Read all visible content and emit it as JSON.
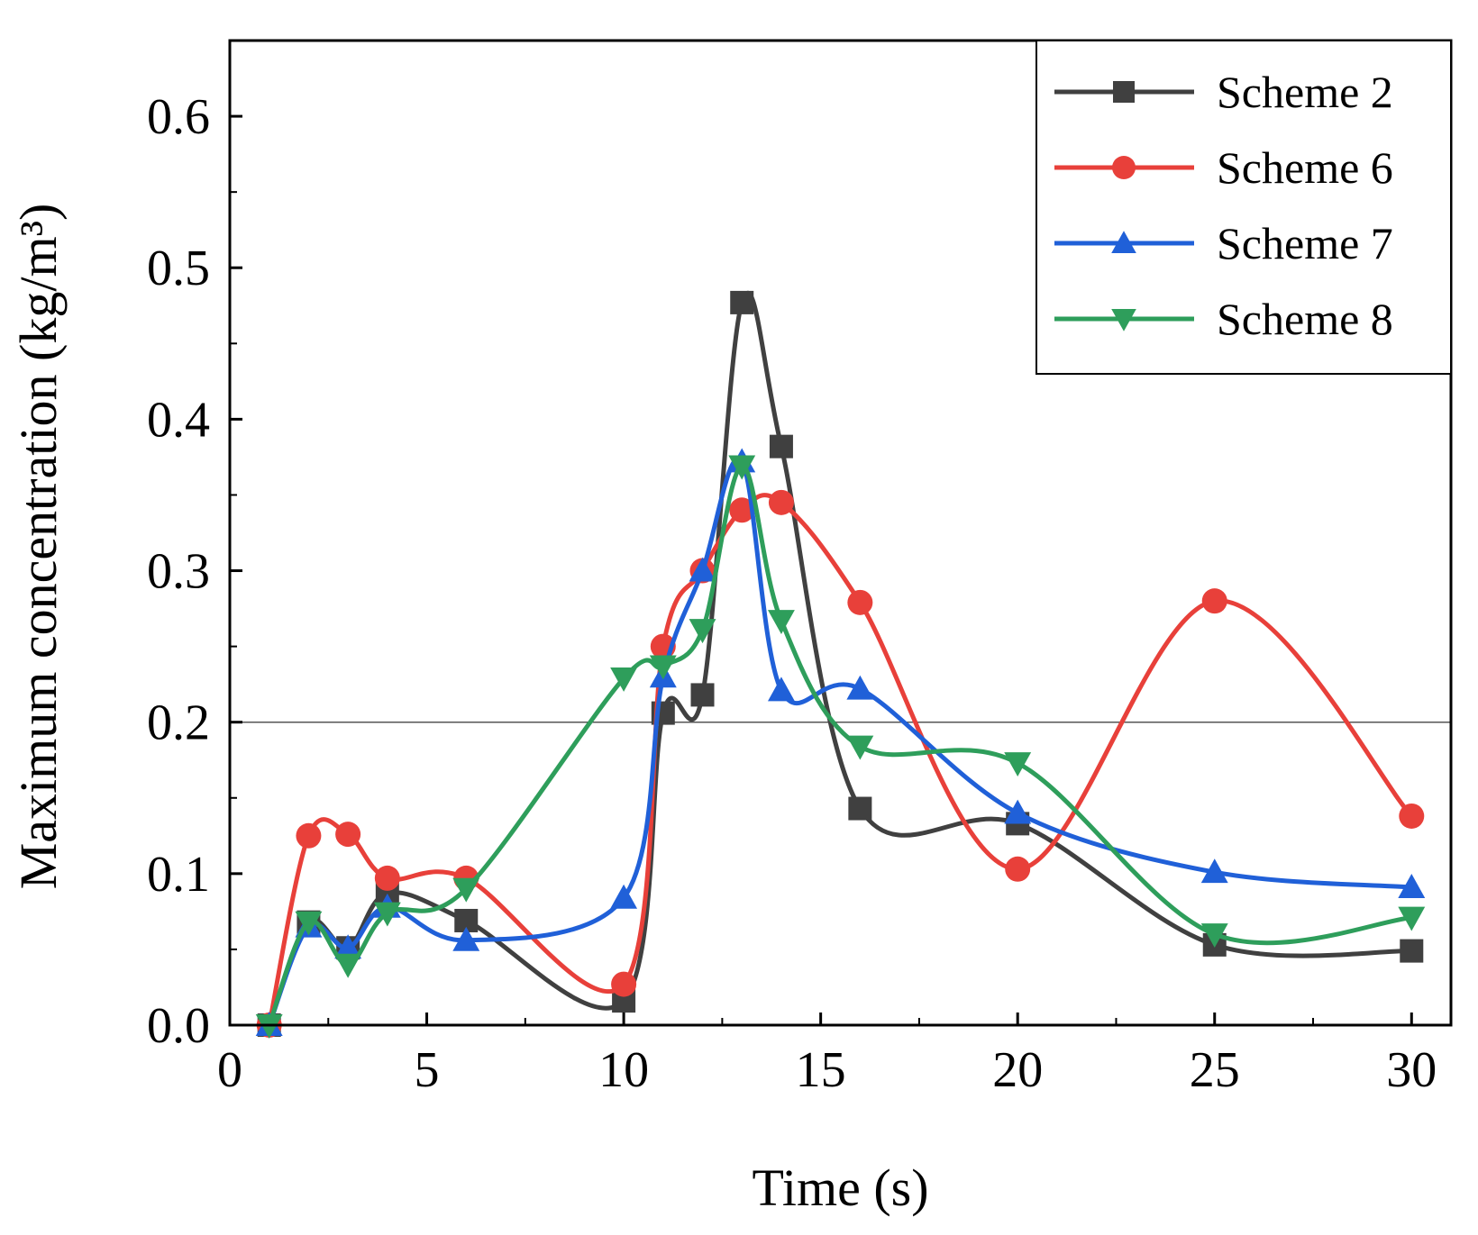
{
  "chart_data": {
    "type": "line",
    "smooth": true,
    "xlabel": "Time (s)",
    "ylabel": "Maximum concentration (kg/m³)",
    "xlim": [
      0,
      31
    ],
    "ylim": [
      0,
      0.65
    ],
    "xticks": [
      0,
      5,
      10,
      15,
      20,
      25,
      30
    ],
    "xtick_labels": [
      "0",
      "5",
      "10",
      "15",
      "20",
      "25",
      "30"
    ],
    "yticks": [
      0.0,
      0.1,
      0.2,
      0.3,
      0.4,
      0.5,
      0.6
    ],
    "ytick_labels": [
      "0.0",
      "0.1",
      "0.2",
      "0.3",
      "0.4",
      "0.5",
      "0.6"
    ],
    "reference_line_y": 0.2,
    "legend_position": "top-right",
    "series": [
      {
        "name": "Scheme 2",
        "color": "#404040",
        "marker": "square",
        "x": [
          1,
          2,
          3,
          4,
          6,
          10,
          11,
          12,
          13,
          14,
          16,
          20,
          25,
          30
        ],
        "y": [
          0.0,
          0.068,
          0.051,
          0.087,
          0.069,
          0.016,
          0.206,
          0.218,
          0.477,
          0.382,
          0.143,
          0.133,
          0.053,
          0.049
        ]
      },
      {
        "name": "Scheme 6",
        "color": "#e8403a",
        "marker": "circle",
        "x": [
          1,
          2,
          3,
          4,
          6,
          10,
          11,
          12,
          13,
          14,
          16,
          20,
          25,
          30
        ],
        "y": [
          0.0,
          0.125,
          0.126,
          0.097,
          0.097,
          0.027,
          0.25,
          0.3,
          0.34,
          0.345,
          0.279,
          0.103,
          0.28,
          0.138
        ]
      },
      {
        "name": "Scheme 7",
        "color": "#2060d8",
        "marker": "triangle-up",
        "x": [
          1,
          2,
          3,
          4,
          6,
          10,
          11,
          12,
          13,
          14,
          16,
          20,
          25,
          30
        ],
        "y": [
          0.0,
          0.065,
          0.051,
          0.078,
          0.056,
          0.084,
          0.23,
          0.3,
          0.372,
          0.221,
          0.222,
          0.14,
          0.101,
          0.091
        ]
      },
      {
        "name": "Scheme 8",
        "color": "#2e9e5b",
        "marker": "triangle-down",
        "x": [
          1,
          2,
          3,
          4,
          6,
          10,
          11,
          12,
          13,
          14,
          16,
          20,
          25,
          30
        ],
        "y": [
          0.0,
          0.068,
          0.04,
          0.074,
          0.09,
          0.229,
          0.237,
          0.261,
          0.369,
          0.267,
          0.184,
          0.173,
          0.06,
          0.071
        ]
      }
    ]
  }
}
